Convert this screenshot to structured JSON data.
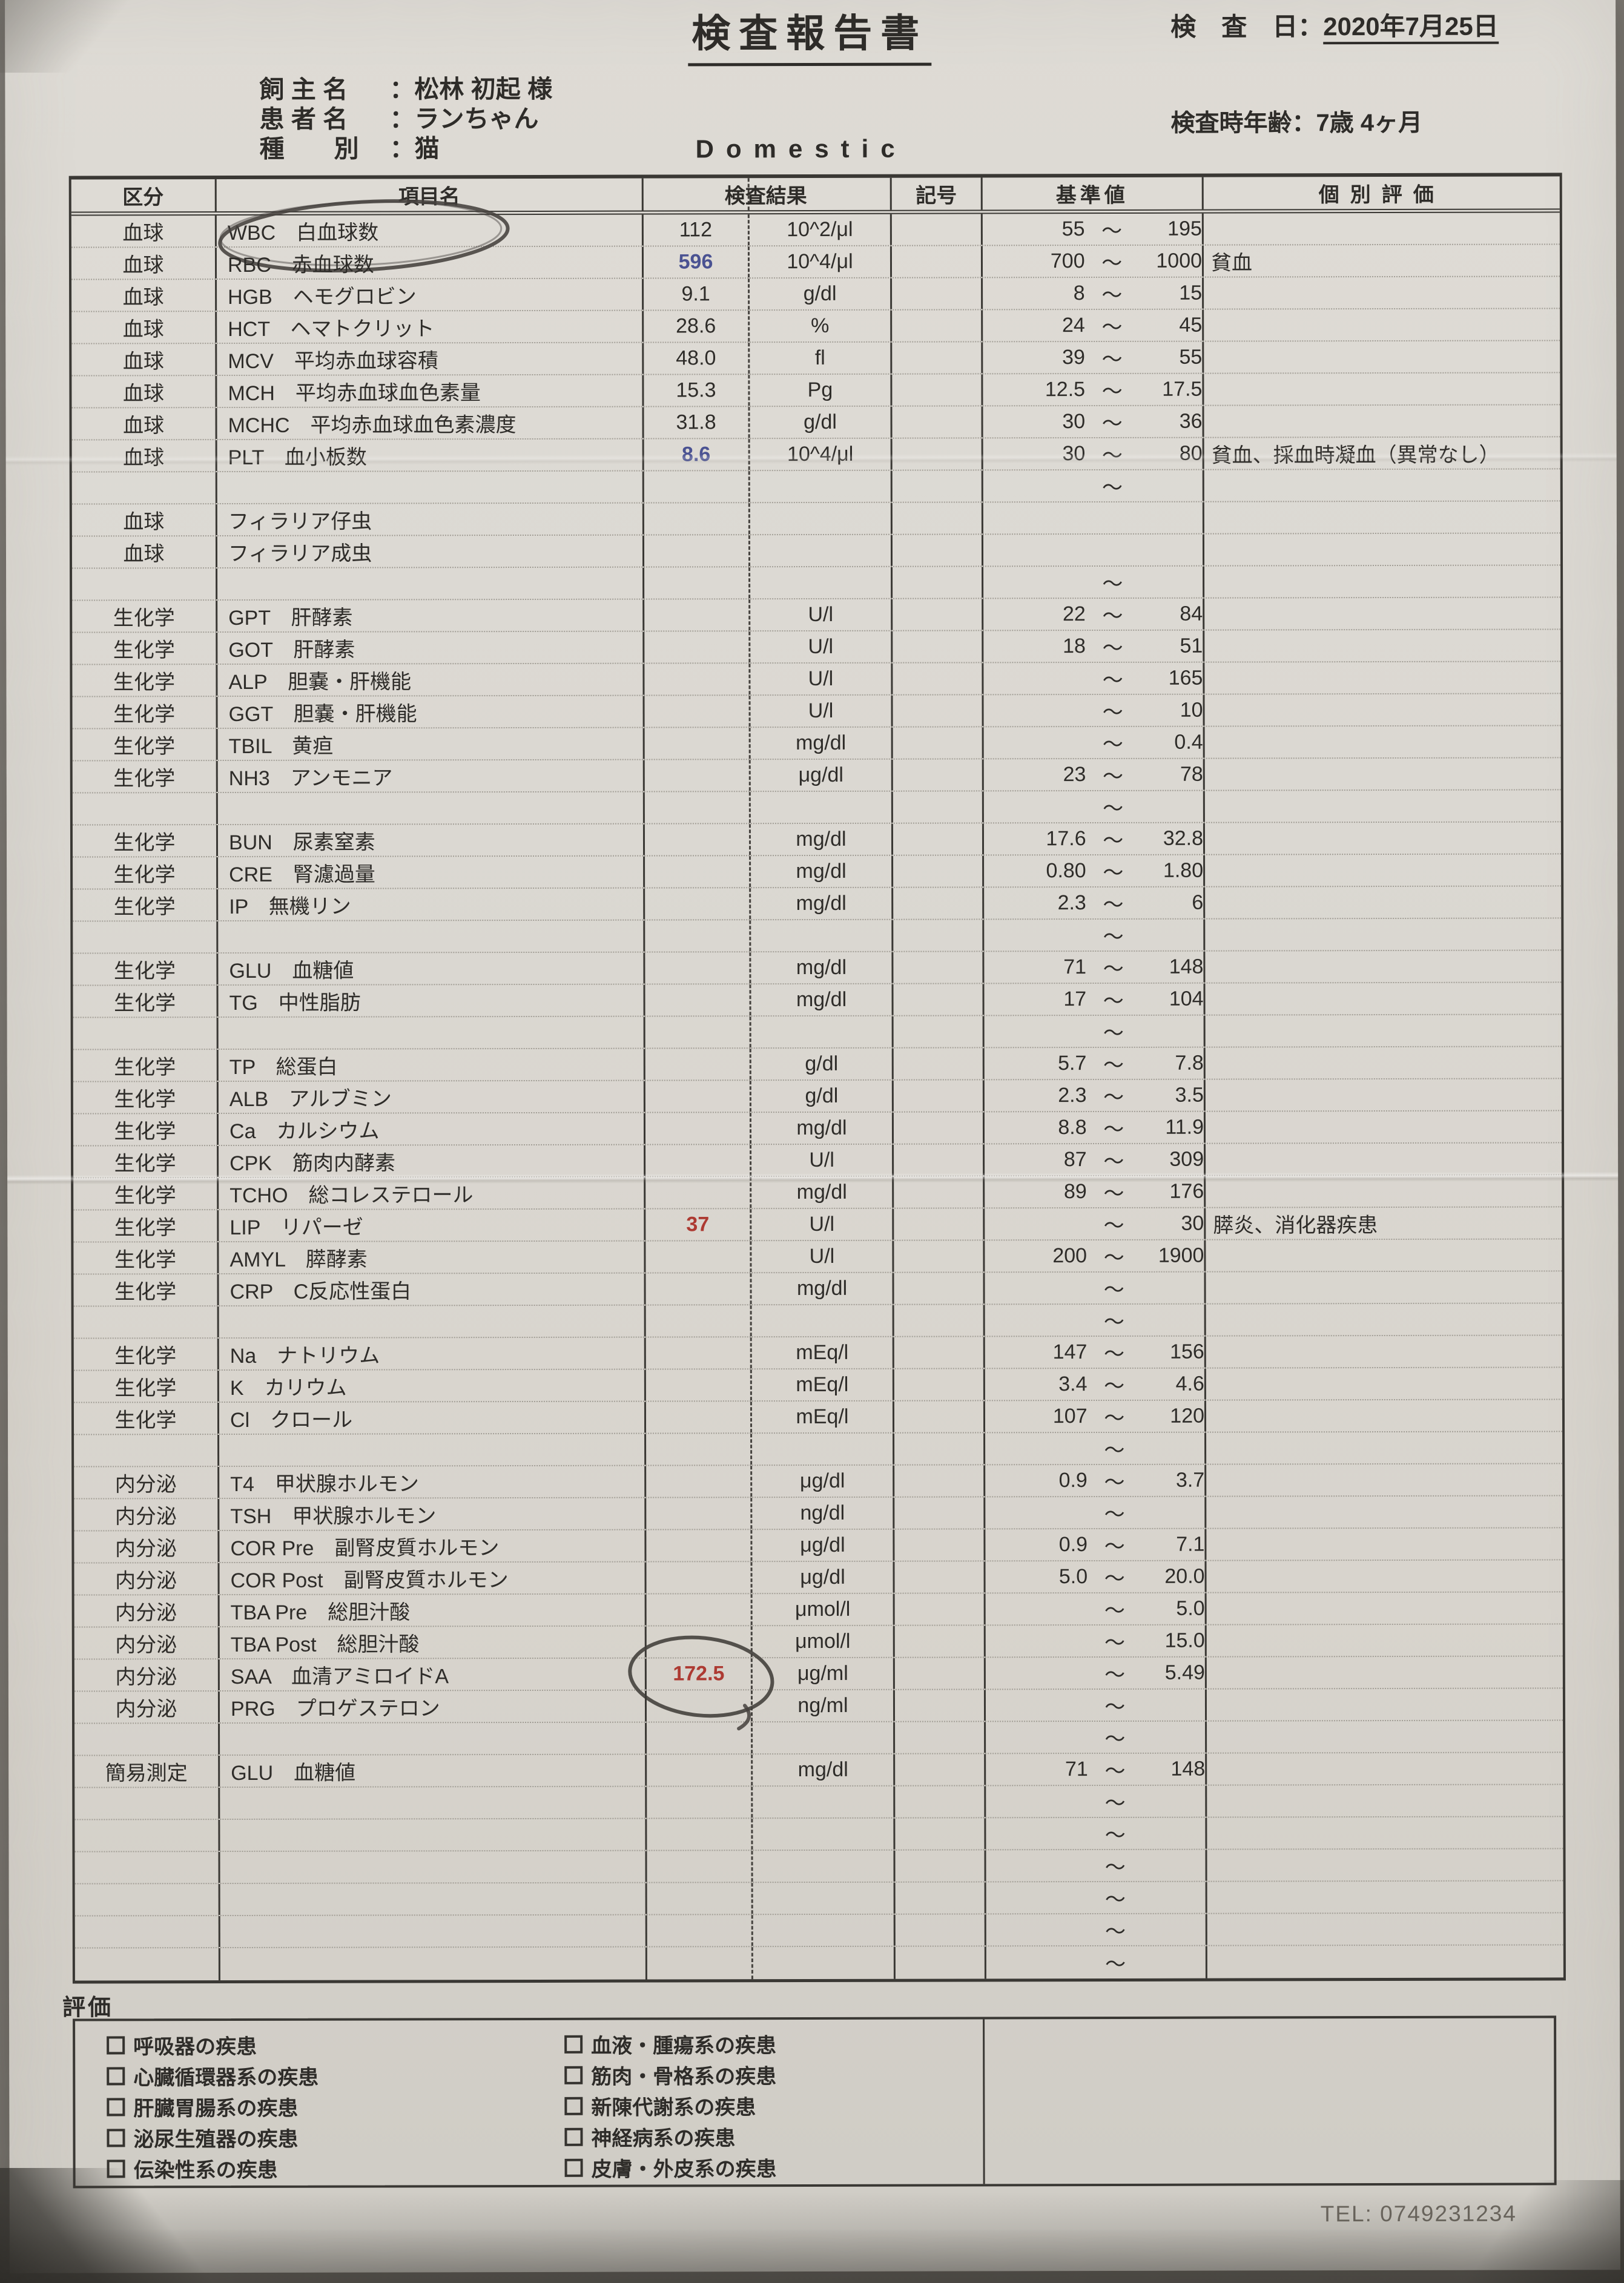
{
  "report": {
    "title": "検査報告書",
    "exam_date_label": "検　査　日：",
    "exam_date": "2020年7月25日",
    "age_label": "検査時年齢：",
    "age_value": "7歳 4ヶ月",
    "owner_label": "飼 主 名",
    "owner_value": "：松林 初起 様",
    "patient_label": "患 者 名",
    "patient_value": "：ランちゃん",
    "species_label": "種　　別",
    "species_value": "：猫",
    "breed": "Domestic",
    "tel": "TEL: 0749231234"
  },
  "table": {
    "tilde_char": "～",
    "header": {
      "category": "区分",
      "item": "項目名",
      "result": "検査結果",
      "symbol": "記号",
      "reference": "基準値",
      "evaluation": "個別評価"
    },
    "rows": [
      {
        "c": "血球",
        "item": "WBC　白血球数",
        "res": "112",
        "unit": "10^2/μl",
        "min": "55",
        "max": "195",
        "tilde": true,
        "circleItem": true
      },
      {
        "c": "血球",
        "item": "RBC　赤血球数",
        "res": "596",
        "resColor": "blue",
        "unit": "10^4/μl",
        "min": "700",
        "max": "1000",
        "tilde": true,
        "eval": "貧血"
      },
      {
        "c": "血球",
        "item": "HGB　ヘモグロビン",
        "res": "9.1",
        "unit": "g/dl",
        "min": "8",
        "max": "15",
        "tilde": true
      },
      {
        "c": "血球",
        "item": "HCT　ヘマトクリット",
        "res": "28.6",
        "unit": "%",
        "min": "24",
        "max": "45",
        "tilde": true
      },
      {
        "c": "血球",
        "item": "MCV　平均赤血球容積",
        "res": "48.0",
        "unit": "fl",
        "min": "39",
        "max": "55",
        "tilde": true
      },
      {
        "c": "血球",
        "item": "MCH　平均赤血球血色素量",
        "res": "15.3",
        "unit": "Pg",
        "min": "12.5",
        "max": "17.5",
        "tilde": true
      },
      {
        "c": "血球",
        "item": "MCHC　平均赤血球血色素濃度",
        "res": "31.8",
        "unit": "g/dl",
        "min": "30",
        "max": "36",
        "tilde": true
      },
      {
        "c": "血球",
        "item": "PLT　血小板数",
        "res": "8.6",
        "resColor": "blue",
        "unit": "10^4/μl",
        "min": "30",
        "max": "80",
        "tilde": true,
        "eval": "貧血、採血時凝血（異常なし）"
      },
      {
        "tilde": true
      },
      {
        "c": "血球",
        "item": "フィラリア仔虫"
      },
      {
        "c": "血球",
        "item": "フィラリア成虫"
      },
      {
        "tilde": true
      },
      {
        "c": "生化学",
        "item": "GPT　肝酵素",
        "unit": "U/l",
        "min": "22",
        "max": "84",
        "tilde": true
      },
      {
        "c": "生化学",
        "item": "GOT　肝酵素",
        "unit": "U/l",
        "min": "18",
        "max": "51",
        "tilde": true
      },
      {
        "c": "生化学",
        "item": "ALP　胆嚢・肝機能",
        "unit": "U/l",
        "max": "165",
        "tilde": true
      },
      {
        "c": "生化学",
        "item": "GGT　胆嚢・肝機能",
        "unit": "U/l",
        "max": "10",
        "tilde": true
      },
      {
        "c": "生化学",
        "item": "TBIL　黄疸",
        "unit": "mg/dl",
        "max": "0.4",
        "tilde": true
      },
      {
        "c": "生化学",
        "item": "NH3　アンモニア",
        "unit": "μg/dl",
        "min": "23",
        "max": "78",
        "tilde": true
      },
      {
        "tilde": true
      },
      {
        "c": "生化学",
        "item": "BUN　尿素窒素",
        "unit": "mg/dl",
        "min": "17.6",
        "max": "32.8",
        "tilde": true
      },
      {
        "c": "生化学",
        "item": "CRE　腎濾過量",
        "unit": "mg/dl",
        "min": "0.80",
        "max": "1.80",
        "tilde": true
      },
      {
        "c": "生化学",
        "item": "IP　無機リン",
        "unit": "mg/dl",
        "min": "2.3",
        "max": "6",
        "tilde": true
      },
      {
        "tilde": true
      },
      {
        "c": "生化学",
        "item": "GLU　血糖値",
        "unit": "mg/dl",
        "min": "71",
        "max": "148",
        "tilde": true
      },
      {
        "c": "生化学",
        "item": "TG　中性脂肪",
        "unit": "mg/dl",
        "min": "17",
        "max": "104",
        "tilde": true
      },
      {
        "tilde": true
      },
      {
        "c": "生化学",
        "item": "TP　総蛋白",
        "unit": "g/dl",
        "min": "5.7",
        "max": "7.8",
        "tilde": true
      },
      {
        "c": "生化学",
        "item": "ALB　アルブミン",
        "unit": "g/dl",
        "min": "2.3",
        "max": "3.5",
        "tilde": true
      },
      {
        "c": "生化学",
        "item": "Ca　カルシウム",
        "unit": "mg/dl",
        "min": "8.8",
        "max": "11.9",
        "tilde": true
      },
      {
        "c": "生化学",
        "item": "CPK　筋肉内酵素",
        "unit": "U/l",
        "min": "87",
        "max": "309",
        "tilde": true
      },
      {
        "c": "生化学",
        "item": "TCHO　総コレステロール",
        "unit": "mg/dl",
        "min": "89",
        "max": "176",
        "tilde": true
      },
      {
        "c": "生化学",
        "item": "LIP　リパーゼ",
        "res": "37",
        "resColor": "red",
        "unit": "U/l",
        "max": "30",
        "tilde": true,
        "eval": "膵炎、消化器疾患"
      },
      {
        "c": "生化学",
        "item": "AMYL　膵酵素",
        "unit": "U/l",
        "min": "200",
        "max": "1900",
        "tilde": true
      },
      {
        "c": "生化学",
        "item": "CRP　C反応性蛋白",
        "unit": "mg/dl",
        "tilde": true
      },
      {
        "tilde": true
      },
      {
        "c": "生化学",
        "item": "Na　ナトリウム",
        "unit": "mEq/l",
        "min": "147",
        "max": "156",
        "tilde": true
      },
      {
        "c": "生化学",
        "item": "K　カリウム",
        "unit": "mEq/l",
        "min": "3.4",
        "max": "4.6",
        "tilde": true
      },
      {
        "c": "生化学",
        "item": "Cl　クロール",
        "unit": "mEq/l",
        "min": "107",
        "max": "120",
        "tilde": true
      },
      {
        "tilde": true
      },
      {
        "c": "内分泌",
        "item": "T4　甲状腺ホルモン",
        "unit": "μg/dl",
        "min": "0.9",
        "max": "3.7",
        "tilde": true
      },
      {
        "c": "内分泌",
        "item": "TSH　甲状腺ホルモン",
        "unit": "ng/dl",
        "tilde": true
      },
      {
        "c": "内分泌",
        "item": "COR Pre　副腎皮質ホルモン",
        "unit": "μg/dl",
        "min": "0.9",
        "max": "7.1",
        "tilde": true
      },
      {
        "c": "内分泌",
        "item": "COR Post　副腎皮質ホルモン",
        "unit": "μg/dl",
        "min": "5.0",
        "max": "20.0",
        "tilde": true
      },
      {
        "c": "内分泌",
        "item": "TBA Pre　総胆汁酸",
        "unit": "μmol/l",
        "max": "5.0",
        "tilde": true
      },
      {
        "c": "内分泌",
        "item": "TBA Post　総胆汁酸",
        "unit": "μmol/l",
        "max": "15.0",
        "tilde": true
      },
      {
        "c": "内分泌",
        "item": "SAA　血清アミロイドA",
        "res": "172.5",
        "resColor": "red",
        "unit": "μg/ml",
        "max": "5.49",
        "tilde": true,
        "circleResult": true
      },
      {
        "c": "内分泌",
        "item": "PRG　プロゲステロン",
        "unit": "ng/ml",
        "tilde": true
      },
      {
        "tilde": true
      },
      {
        "c": "簡易測定",
        "item": "GLU　血糖値",
        "unit": "mg/dl",
        "min": "71",
        "max": "148",
        "tilde": true
      },
      {
        "tilde": true
      },
      {
        "tilde": true
      },
      {
        "tilde": true
      },
      {
        "tilde": true
      },
      {
        "tilde": true
      },
      {
        "tilde": true
      }
    ]
  },
  "evaluation": {
    "label": "評価",
    "left": [
      "呼吸器の疾患",
      "心臓循環器系の疾患",
      "肝臓胃腸系の疾患",
      "泌尿生殖器の疾患",
      "伝染性系の疾患"
    ],
    "right": [
      "血液・腫瘍系の疾患",
      "筋肉・骨格系の疾患",
      "新陳代謝系の疾患",
      "神経病系の疾患",
      "皮膚・外皮系の疾患"
    ]
  },
  "colors": {
    "paper": "#dad7d1",
    "ink": "#2e2c29",
    "abnormal_low_blue": "#4a5292",
    "abnormal_high_red": "#ad3a32",
    "pen_annotation": "#45413d"
  }
}
